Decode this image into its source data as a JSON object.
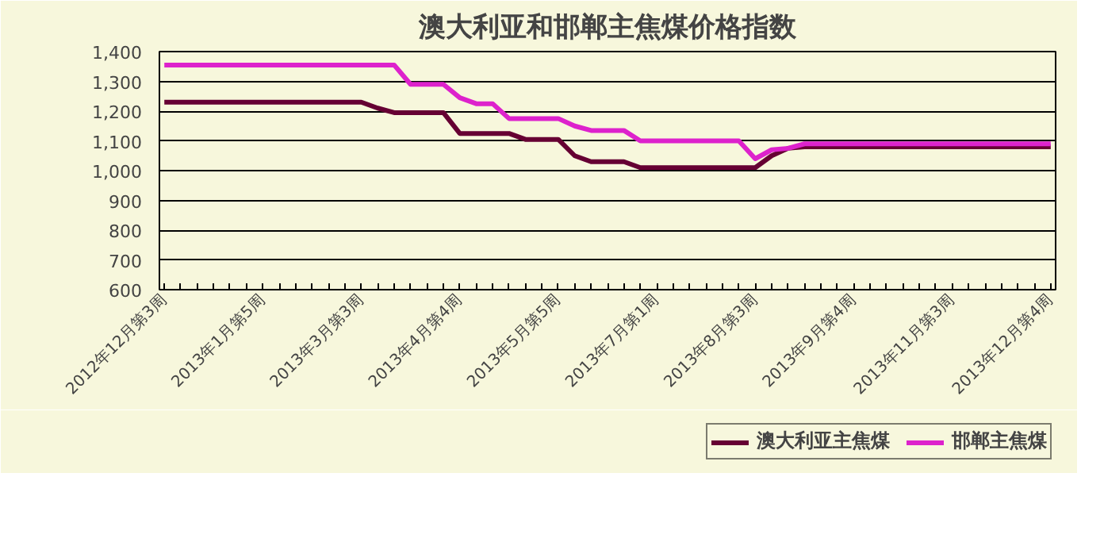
{
  "chart_data": {
    "type": "line",
    "title": "澳大利亚和邯郸主焦煤价格指数",
    "categories": [
      "2012年12月第3周",
      null,
      null,
      null,
      null,
      null,
      "2013年1月第5周",
      null,
      null,
      null,
      null,
      null,
      "2013年3月第3周",
      null,
      null,
      null,
      null,
      null,
      "2013年4月第4周",
      null,
      null,
      null,
      null,
      null,
      "2013年5月第5周",
      null,
      null,
      null,
      null,
      null,
      "2013年7月第1周",
      null,
      null,
      null,
      null,
      null,
      "2013年8月第3周",
      null,
      null,
      null,
      null,
      null,
      "2013年9月第4周",
      null,
      null,
      null,
      null,
      null,
      "2013年11月第3周",
      null,
      null,
      null,
      null,
      null,
      "2013年12月第4周"
    ],
    "series": [
      {
        "name": "澳大利亚主焦煤",
        "color": "#660033",
        "values": [
          1230,
          1230,
          1230,
          1230,
          1230,
          1230,
          1230,
          1230,
          1230,
          1230,
          1230,
          1230,
          1230,
          1210,
          1195,
          1195,
          1195,
          1195,
          1125,
          1125,
          1125,
          1125,
          1105,
          1105,
          1105,
          1050,
          1030,
          1030,
          1030,
          1010,
          1010,
          1010,
          1010,
          1010,
          1010,
          1010,
          1010,
          1050,
          1075,
          1080,
          1080,
          1080,
          1080,
          1080,
          1080,
          1080,
          1080,
          1080,
          1080,
          1080,
          1080,
          1080,
          1080,
          1080,
          1080
        ]
      },
      {
        "name": "邯郸主焦煤",
        "color": "#dd22cc",
        "values": [
          1355,
          1355,
          1355,
          1355,
          1355,
          1355,
          1355,
          1355,
          1355,
          1355,
          1355,
          1355,
          1355,
          1355,
          1355,
          1290,
          1290,
          1290,
          1245,
          1225,
          1225,
          1175,
          1175,
          1175,
          1175,
          1150,
          1135,
          1135,
          1135,
          1100,
          1100,
          1100,
          1100,
          1100,
          1100,
          1100,
          1040,
          1070,
          1075,
          1090,
          1090,
          1090,
          1090,
          1090,
          1090,
          1090,
          1090,
          1090,
          1090,
          1090,
          1090,
          1090,
          1090,
          1090,
          1090
        ]
      }
    ],
    "ylim": [
      600,
      1400
    ],
    "yticks": [
      600,
      700,
      800,
      900,
      {
        "value": 1000,
        "label": "1,000"
      },
      {
        "value": 1100,
        "label": "1,100"
      },
      {
        "value": 1200,
        "label": "1,200"
      },
      {
        "value": 1300,
        "label": "1,300"
      },
      {
        "value": 1400,
        "label": "1,400"
      }
    ],
    "grid": "y",
    "legend": "bottom right",
    "marker": "none",
    "line_style": "solid"
  }
}
